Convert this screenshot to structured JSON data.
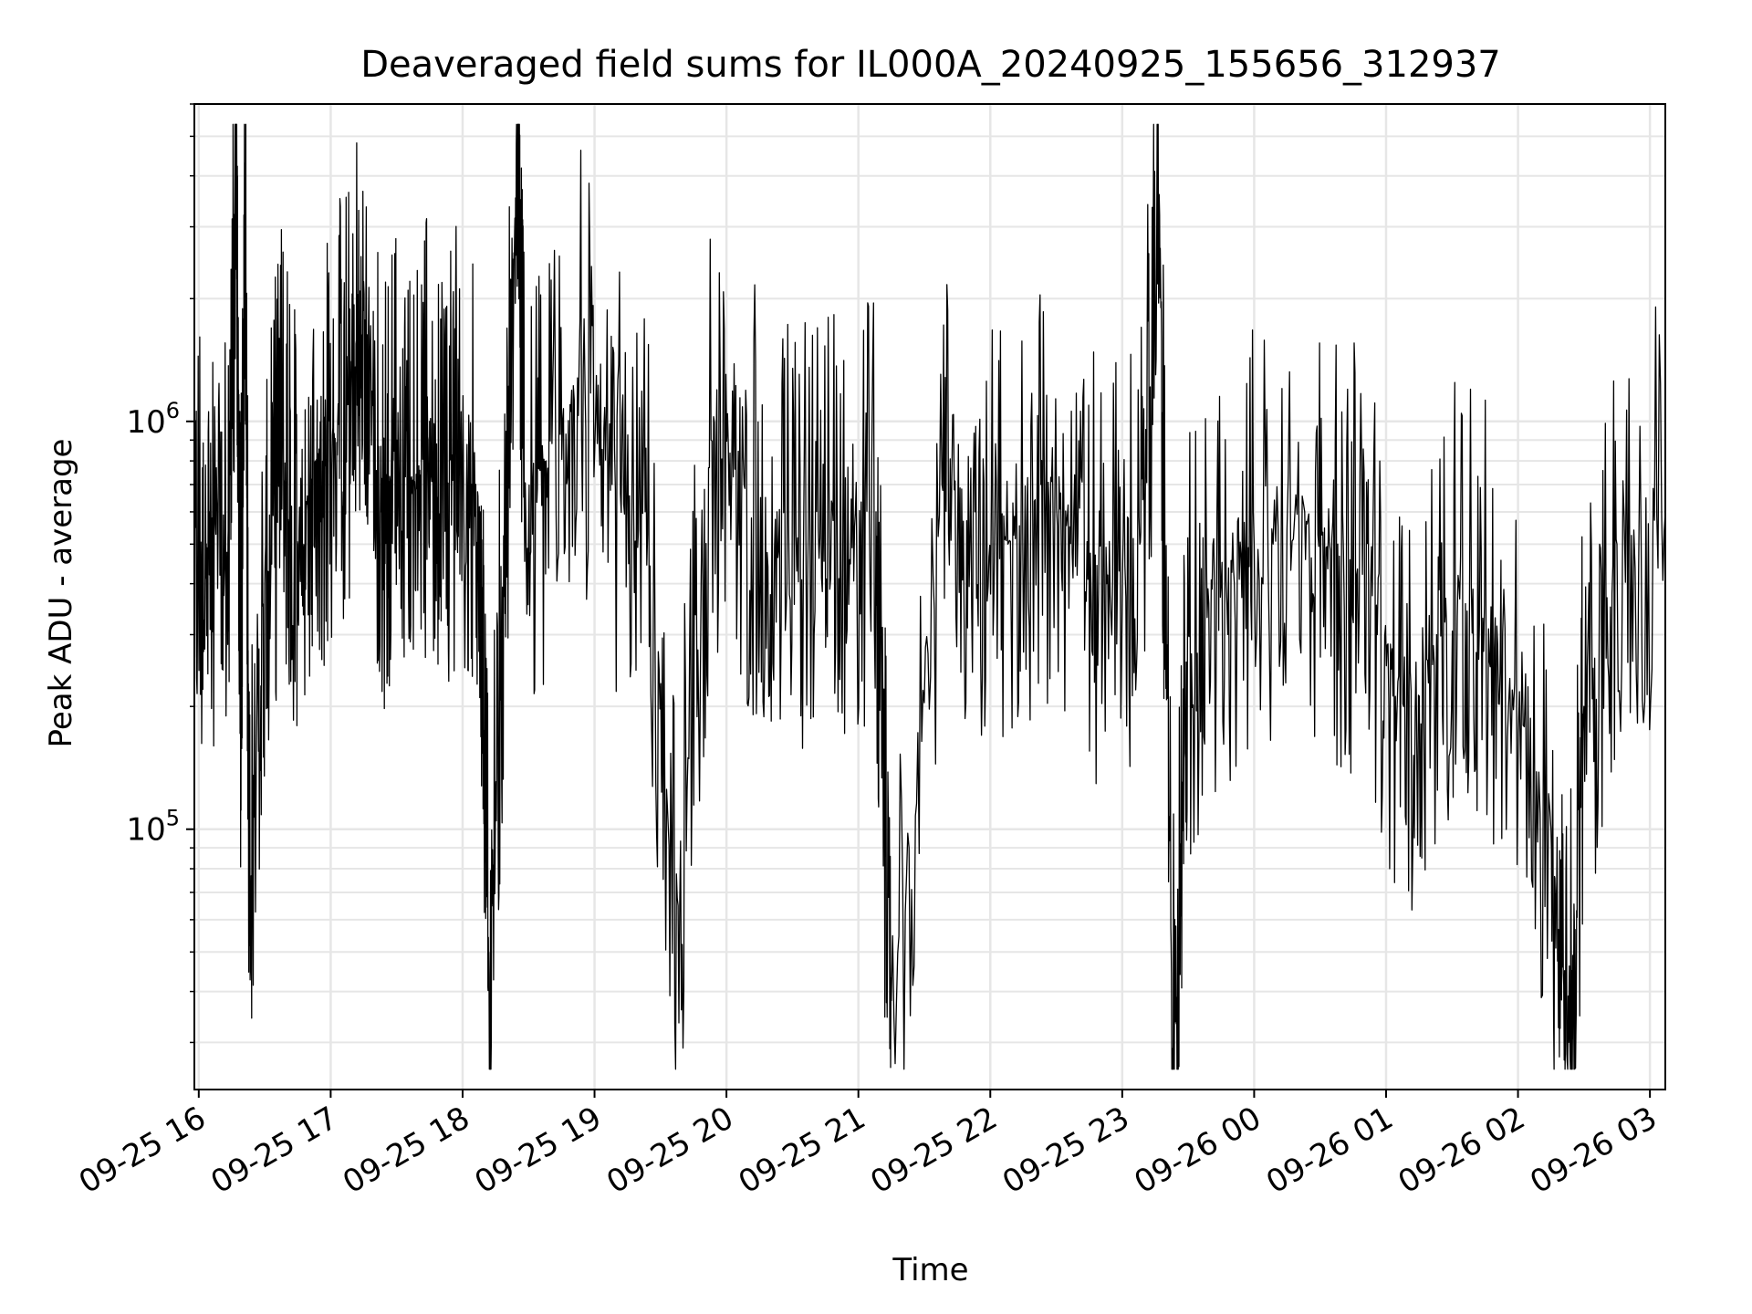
{
  "chart_data": {
    "type": "line",
    "title": "Deaveraged field sums for IL000A_20240925_155656_312937",
    "xlabel": "Time",
    "ylabel": "Peak ADU - average",
    "y_scale": "log",
    "ylim": [
      23000,
      6000000
    ],
    "xlim": [
      "2024-09-25 15:58",
      "2024-09-26 03:07"
    ],
    "grid": true,
    "line_color": "#000000",
    "x_ticks": [
      {
        "t": "2024-09-25 16:00",
        "label": "09-25 16"
      },
      {
        "t": "2024-09-25 17:00",
        "label": "09-25 17"
      },
      {
        "t": "2024-09-25 18:00",
        "label": "09-25 18"
      },
      {
        "t": "2024-09-25 19:00",
        "label": "09-25 19"
      },
      {
        "t": "2024-09-25 20:00",
        "label": "09-25 20"
      },
      {
        "t": "2024-09-25 21:00",
        "label": "09-25 21"
      },
      {
        "t": "2024-09-25 22:00",
        "label": "09-25 22"
      },
      {
        "t": "2024-09-25 23:00",
        "label": "09-25 23"
      },
      {
        "t": "2024-09-26 00:00",
        "label": "09-26 00"
      },
      {
        "t": "2024-09-26 01:00",
        "label": "09-26 01"
      },
      {
        "t": "2024-09-26 02:00",
        "label": "09-26 02"
      },
      {
        "t": "2024-09-26 03:00",
        "label": "09-26 03"
      }
    ],
    "y_ticks": [
      {
        "value": 100000,
        "base": "10",
        "exp": "5"
      },
      {
        "value": 1000000,
        "base": "10",
        "exp": "6"
      }
    ],
    "series": [
      {
        "points": [
          [
            "2024-09-25 15:58",
            500000
          ],
          [
            "2024-09-25 16:05",
            600000
          ],
          [
            "2024-09-25 16:13",
            450000
          ],
          [
            "2024-09-25 16:17",
            4200000
          ],
          [
            "2024-09-25 16:19",
            200000
          ],
          [
            "2024-09-25 16:21",
            4300000
          ],
          [
            "2024-09-25 16:23",
            90000
          ],
          [
            "2024-09-25 16:30",
            400000
          ],
          [
            "2024-09-25 16:38",
            900000
          ],
          [
            "2024-09-25 16:45",
            500000
          ],
          [
            "2024-09-25 16:53",
            800000
          ],
          [
            "2024-09-25 17:00",
            900000
          ],
          [
            "2024-09-25 17:08",
            1100000
          ],
          [
            "2024-09-25 17:15",
            2200000
          ],
          [
            "2024-09-25 17:23",
            600000
          ],
          [
            "2024-09-25 17:30",
            900000
          ],
          [
            "2024-09-25 17:38",
            700000
          ],
          [
            "2024-09-25 17:45",
            1000000
          ],
          [
            "2024-09-25 17:53",
            800000
          ],
          [
            "2024-09-25 18:00",
            900000
          ],
          [
            "2024-09-25 18:08",
            600000
          ],
          [
            "2024-09-25 18:12",
            44000
          ],
          [
            "2024-09-25 18:19",
            500000
          ],
          [
            "2024-09-25 18:25",
            5000000
          ],
          [
            "2024-09-25 18:28",
            700000
          ],
          [
            "2024-09-25 18:38",
            800000
          ],
          [
            "2024-09-25 18:53",
            1400000
          ],
          [
            "2024-09-25 19:08",
            700000
          ],
          [
            "2024-09-25 19:23",
            600000
          ],
          [
            "2024-09-25 19:38",
            65000
          ],
          [
            "2024-09-25 19:53",
            900000
          ],
          [
            "2024-09-25 20:08",
            700000
          ],
          [
            "2024-09-25 20:23",
            600000
          ],
          [
            "2024-09-25 20:38",
            500000
          ],
          [
            "2024-09-25 20:53",
            600000
          ],
          [
            "2024-09-25 21:08",
            600000
          ],
          [
            "2024-09-25 21:15",
            38000
          ],
          [
            "2024-09-25 21:38",
            700000
          ],
          [
            "2024-09-25 21:53",
            600000
          ],
          [
            "2024-09-25 22:08",
            500000
          ],
          [
            "2024-09-25 22:23",
            700000
          ],
          [
            "2024-09-25 22:38",
            600000
          ],
          [
            "2024-09-25 22:53",
            400000
          ],
          [
            "2024-09-25 23:08",
            500000
          ],
          [
            "2024-09-25 23:17",
            3200000
          ],
          [
            "2024-09-25 23:23",
            29000
          ],
          [
            "2024-09-25 23:30",
            300000
          ],
          [
            "2024-09-25 23:45",
            400000
          ],
          [
            "2024-09-26 00:00",
            500000
          ],
          [
            "2024-09-26 00:23",
            600000
          ],
          [
            "2024-09-26 00:38",
            500000
          ],
          [
            "2024-09-26 00:53",
            400000
          ],
          [
            "2024-09-26 01:08",
            200000
          ],
          [
            "2024-09-26 01:23",
            300000
          ],
          [
            "2024-09-26 01:38",
            400000
          ],
          [
            "2024-09-26 01:53",
            300000
          ],
          [
            "2024-09-26 02:15",
            100000
          ],
          [
            "2024-09-26 02:23",
            30000
          ],
          [
            "2024-09-26 02:30",
            200000
          ],
          [
            "2024-09-26 02:45",
            500000
          ],
          [
            "2024-09-26 03:07",
            600000
          ]
        ]
      }
    ]
  }
}
